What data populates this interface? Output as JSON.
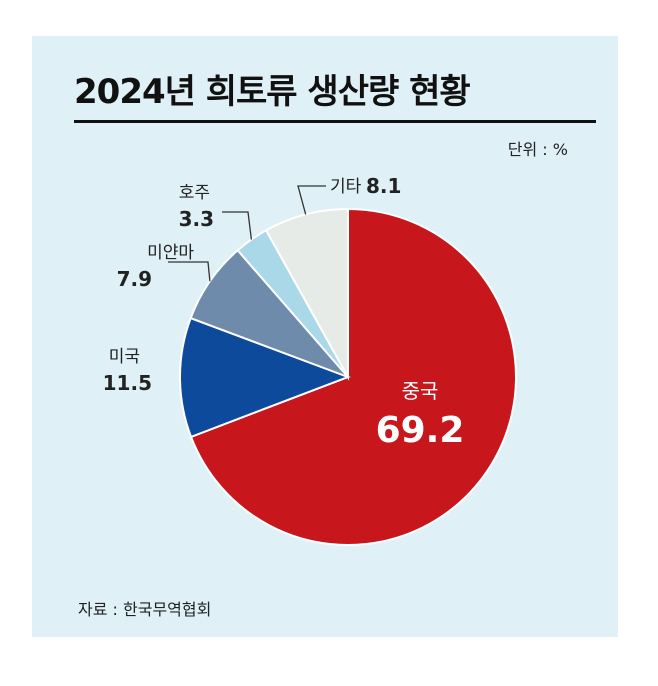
{
  "title": "2024년 희토류 생산량 현황",
  "unit": "단위 : %",
  "source": "자료 : 한국무역협회",
  "chart_data": {
    "type": "pie",
    "title": "2024년 희토류 생산량 현황",
    "unit": "%",
    "slices": [
      {
        "label": "중국",
        "value": 69.2,
        "display": "69.2",
        "color": "#c8161d"
      },
      {
        "label": "미국",
        "value": 11.5,
        "display": "11.5",
        "color": "#0d4a9b"
      },
      {
        "label": "미얀마",
        "value": 7.9,
        "display": "7.9",
        "color": "#6f8bac"
      },
      {
        "label": "호주",
        "value": 3.3,
        "display": "3.3",
        "color": "#a9d8e8"
      },
      {
        "label": "기타",
        "value": 8.1,
        "display": "8.1",
        "color": "#e6ebe8"
      }
    ]
  }
}
